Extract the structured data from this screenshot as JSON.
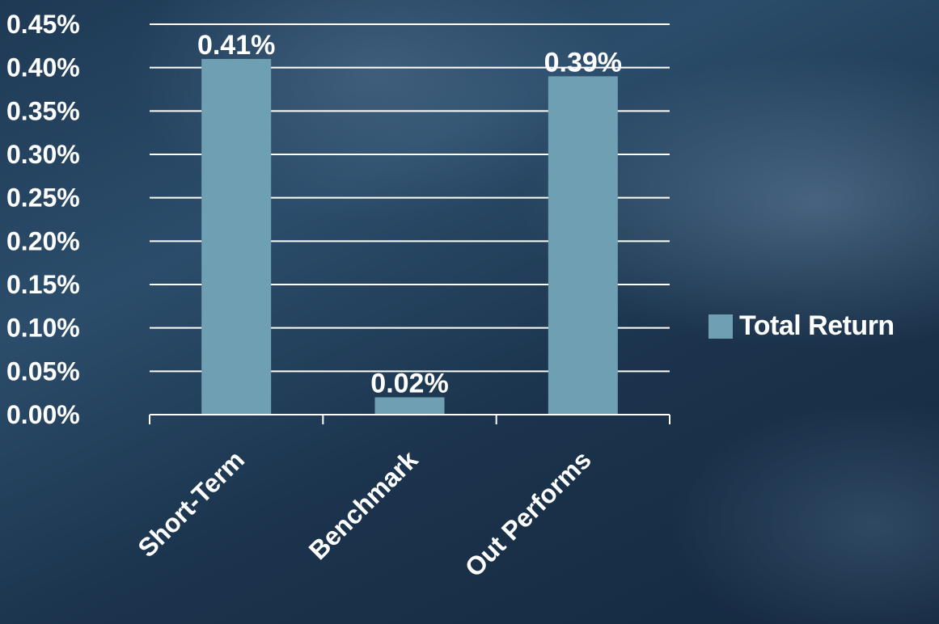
{
  "chart_data": {
    "type": "bar",
    "categories": [
      "Short-Term",
      "Benchmark",
      "Out Performs"
    ],
    "series": [
      {
        "name": "Total Return",
        "values": [
          0.41,
          0.02,
          0.39
        ]
      }
    ],
    "data_labels": [
      "0.41%",
      "0.02%",
      "0.39%"
    ],
    "y_ticks": [
      0,
      0.05,
      0.1,
      0.15,
      0.2,
      0.25,
      0.3,
      0.35,
      0.4,
      0.45
    ],
    "y_tick_labels": [
      "0.00%",
      "0.05%",
      "0.10%",
      "0.15%",
      "0.20%",
      "0.25%",
      "0.30%",
      "0.35%",
      "0.40%",
      "0.45%"
    ],
    "ylim": [
      0,
      0.45
    ],
    "title": "",
    "xlabel": "",
    "ylabel": "",
    "grid": true,
    "legend_position": "right",
    "colors": {
      "bar": "#6e9fb3",
      "grid": "#ffffff",
      "text": "#ffffff"
    }
  }
}
